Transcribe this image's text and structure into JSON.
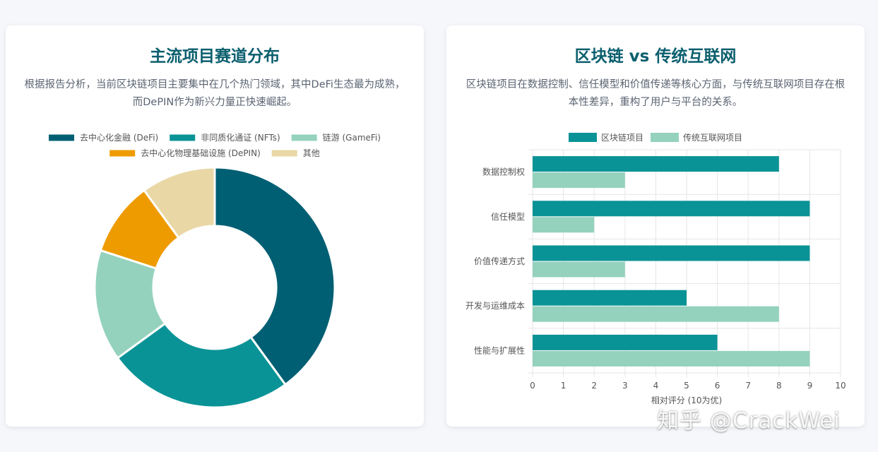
{
  "left_card": {
    "title": "主流项目赛道分布",
    "description": "根据报告分析，当前区块链项目主要集中在几个热门领域，其中DeFi生态最为成熟，而DePIN作为新兴力量正快速崛起。"
  },
  "right_card": {
    "title": "区块链 vs 传统互联网",
    "description": "区块链项目在数据控制、信任模型和价值传递等核心方面，与传统互联网项目存在根本性差异，重构了用户与平台的关系。"
  },
  "watermark": "知乎 @CrackWei",
  "chart_data": [
    {
      "type": "pie",
      "subtype": "doughnut",
      "legend_position": "top",
      "slices": [
        {
          "label": "去中心化金融 (DeFi)",
          "value": 40,
          "color": "#005f73"
        },
        {
          "label": "非同质化通证 (NFTs)",
          "value": 25,
          "color": "#0a9396"
        },
        {
          "label": "链游 (GameFi)",
          "value": 15,
          "color": "#94d2bd"
        },
        {
          "label": "去中心化物理基础设施 (DePIN)",
          "value": 10,
          "color": "#ee9b00"
        },
        {
          "label": "其他",
          "value": 10,
          "color": "#e9d8a6"
        }
      ]
    },
    {
      "type": "bar",
      "orientation": "horizontal",
      "legend_position": "top",
      "grid": true,
      "categories": [
        "数据控制权",
        "信任模型",
        "价值传递方式",
        "开发与运维成本",
        "性能与扩展性"
      ],
      "series": [
        {
          "name": "区块链项目",
          "values": [
            8,
            9,
            9,
            5,
            6
          ],
          "color": "#0a9396"
        },
        {
          "name": "传统互联网项目",
          "values": [
            3,
            2,
            3,
            8,
            9
          ],
          "color": "#94d2bd"
        }
      ],
      "xlim": [
        0,
        10
      ],
      "xticks": [
        "0",
        "1",
        "2",
        "3",
        "4",
        "5",
        "6",
        "7",
        "8",
        "9",
        "10"
      ],
      "xlabel": "相对评分 (10为优)"
    }
  ]
}
